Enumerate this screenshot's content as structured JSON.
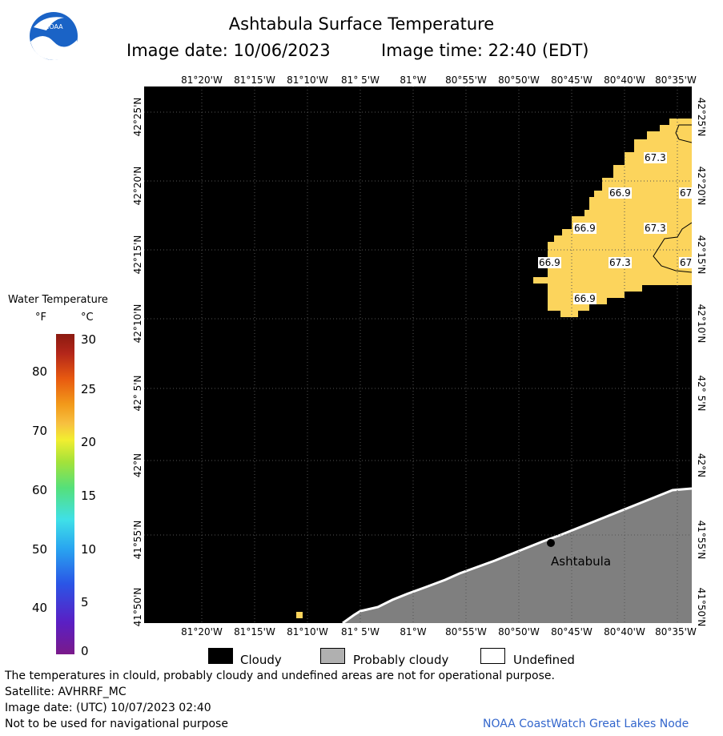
{
  "header": {
    "title": "Ashtabula Surface Temperature",
    "image_date": "Image date: 10/06/2023",
    "image_time": "Image time: 22:40 (EDT)",
    "logo_text": "NOAA"
  },
  "map": {
    "lon_labels": [
      "81°20'W",
      "81°15'W",
      "81°10'W",
      "81° 5'W",
      "81°W",
      "80°55'W",
      "80°50'W",
      "80°45'W",
      "80°40'W",
      "80°35'W"
    ],
    "lat_labels": [
      "42°25'N",
      "42°20'N",
      "42°15'N",
      "42°10'N",
      "42° 5'N",
      "42°N",
      "41°55'N",
      "41°50'N"
    ],
    "temperature_values": [
      "67.3",
      "66.9",
      "67",
      "66.9",
      "67.3",
      "66.9",
      "67.3",
      "67",
      "66.9"
    ],
    "city_label": "Ashtabula",
    "colors": {
      "cloud": "#000000",
      "warm_water": "#fcd45c",
      "land": "#7f7f7f"
    }
  },
  "legend": {
    "title": "Water Temperature",
    "unit_f": "°F",
    "unit_c": "°C",
    "f_ticks": [
      "80",
      "70",
      "60",
      "50",
      "40"
    ],
    "c_ticks": [
      "30",
      "25",
      "20",
      "15",
      "10",
      "5",
      "0"
    ]
  },
  "key": {
    "cloudy": "Cloudy",
    "probably_cloudy": "Probably cloudy",
    "undefined": "Undefined"
  },
  "footer": {
    "disclaimer": "The temperatures in clould, probably cloudy and undefined areas are not for operational purpose.",
    "satellite": "Satellite: AVHRRF_MC",
    "utc_date": "Image date: (UTC) 10/07/2023  02:40",
    "navigation": "Not to be used for navigational purpose",
    "credit": "NOAA CoastWatch Great Lakes Node"
  }
}
